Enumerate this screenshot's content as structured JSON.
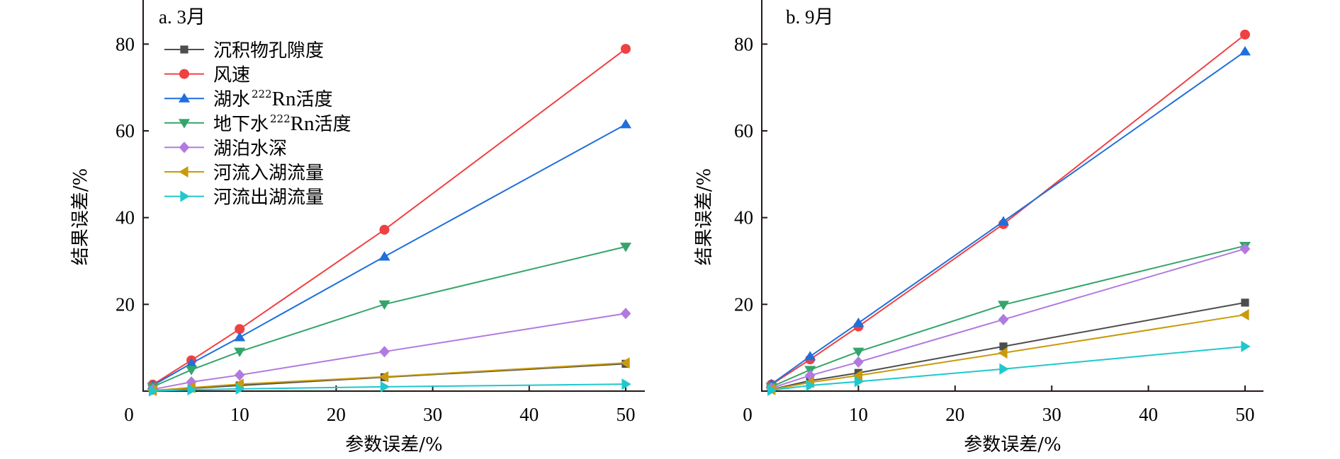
{
  "chart_data": [
    {
      "type": "line",
      "panel": "a",
      "title": "a. 3月",
      "xlabel": "参数误差/%",
      "ylabel": "结果误差/%",
      "xlim": [
        0,
        52
      ],
      "ylim": [
        0,
        90
      ],
      "xticks": [
        0,
        10,
        20,
        30,
        40,
        50
      ],
      "yticks": [
        20,
        40,
        60,
        80
      ],
      "x": [
        1,
        5,
        10,
        25,
        50
      ],
      "legend": {
        "placement": "top-left",
        "show": true
      },
      "grid": false,
      "series": [
        {
          "name": "沉积物孔隙度",
          "marker": "square",
          "color": "#4d4d4d",
          "values": [
            0.13,
            0.65,
            1.3,
            3.2,
            6.3
          ]
        },
        {
          "name": "风速",
          "marker": "circle",
          "color": "#ef4043",
          "values": [
            1.5,
            7.1,
            14.3,
            37.2,
            78.9
          ]
        },
        {
          "name": "湖水²²²Rn活度",
          "marker": "triangle-up",
          "color": "#1f6fdc",
          "values": [
            1.3,
            6.4,
            12.4,
            31.0,
            61.5
          ]
        },
        {
          "name": "地下水²²²Rn活度",
          "marker": "triangle-down",
          "color": "#34a56a",
          "values": [
            1.0,
            4.9,
            9.1,
            20.0,
            33.3
          ]
        },
        {
          "name": "湖泊水深",
          "marker": "diamond",
          "color": "#b07ae0",
          "values": [
            0.4,
            2.1,
            3.7,
            9.1,
            17.9
          ]
        },
        {
          "name": "河流入湖流量",
          "marker": "triangle-left",
          "color": "#c99a0a",
          "values": [
            0.15,
            0.8,
            1.6,
            3.3,
            6.5
          ]
        },
        {
          "name": "河流出湖流量",
          "marker": "triangle-right",
          "color": "#1fc8cc",
          "values": [
            0.05,
            0.3,
            0.5,
            1.0,
            1.6
          ]
        }
      ]
    },
    {
      "type": "line",
      "panel": "b",
      "title": "b. 9月",
      "xlabel": "参数误差/%",
      "ylabel": "结果误差/%",
      "xlim": [
        0,
        52
      ],
      "ylim": [
        0,
        90
      ],
      "xticks": [
        0,
        10,
        20,
        30,
        40,
        50
      ],
      "yticks": [
        20,
        40,
        60,
        80
      ],
      "x": [
        1,
        5,
        10,
        25,
        50
      ],
      "legend": {
        "show": false
      },
      "grid": false,
      "series": [
        {
          "name": "沉积物孔隙度",
          "marker": "square",
          "color": "#4d4d4d",
          "values": [
            0.4,
            2.4,
            4.2,
            10.3,
            20.4
          ]
        },
        {
          "name": "风速",
          "marker": "circle",
          "color": "#ef4043",
          "values": [
            1.5,
            7.3,
            14.9,
            38.5,
            82.2
          ]
        },
        {
          "name": "湖水²²²Rn活度",
          "marker": "triangle-up",
          "color": "#1f6fdc",
          "values": [
            1.6,
            8.0,
            15.7,
            39.1,
            78.3
          ]
        },
        {
          "name": "地下水²²²Rn活度",
          "marker": "triangle-down",
          "color": "#34a56a",
          "values": [
            1.0,
            4.9,
            9.1,
            19.9,
            33.5
          ]
        },
        {
          "name": "湖泊水深",
          "marker": "diamond",
          "color": "#b07ae0",
          "values": [
            0.7,
            3.6,
            6.7,
            16.5,
            32.8
          ]
        },
        {
          "name": "河流入湖流量",
          "marker": "triangle-left",
          "color": "#c99a0a",
          "values": [
            0.35,
            2.0,
            3.6,
            8.8,
            17.6
          ]
        },
        {
          "name": "河流出湖流量",
          "marker": "triangle-right",
          "color": "#1fc8cc",
          "values": [
            0.2,
            1.3,
            2.2,
            5.1,
            10.3
          ]
        }
      ]
    }
  ],
  "legend_labels": [
    {
      "pre": "沉积物孔隙度",
      "sup": "",
      "mid": "",
      "post": ""
    },
    {
      "pre": "风速",
      "sup": "",
      "mid": "",
      "post": ""
    },
    {
      "pre": "湖水",
      "sup": "222",
      "mid": "Rn",
      "post": "活度"
    },
    {
      "pre": "地下水",
      "sup": "222",
      "mid": "Rn",
      "post": "活度"
    },
    {
      "pre": "湖泊水深",
      "sup": "",
      "mid": "",
      "post": ""
    },
    {
      "pre": "河流入湖流量",
      "sup": "",
      "mid": "",
      "post": ""
    },
    {
      "pre": "河流出湖流量",
      "sup": "",
      "mid": "",
      "post": ""
    }
  ]
}
